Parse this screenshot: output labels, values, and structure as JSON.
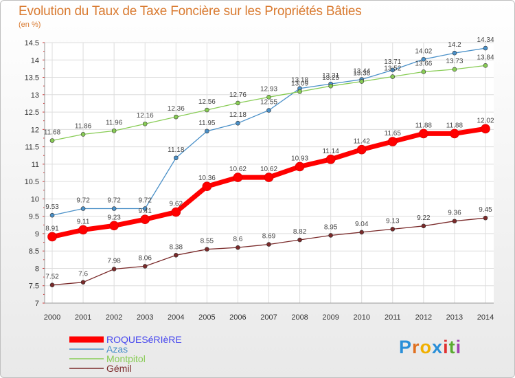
{
  "title": "Evolution du Taux de Taxe Foncière sur les Propriétés Bâties",
  "subtitle": "(en %)",
  "logo": {
    "letters": [
      "P",
      "r",
      "o",
      "x",
      "i",
      "t",
      "i"
    ],
    "colors": [
      "#2a8fd8",
      "#e07020",
      "#f0b000",
      "#2a8fd8",
      "#e03030",
      "#5aaa30",
      "#a040b0"
    ]
  },
  "chart_data": {
    "type": "line",
    "x": [
      2000,
      2001,
      2002,
      2003,
      2004,
      2005,
      2006,
      2007,
      2008,
      2009,
      2010,
      2011,
      2012,
      2013,
      2014
    ],
    "ylim": [
      7,
      14.5
    ],
    "yticks": [
      "7",
      "7.5",
      "8",
      "8.5",
      "9",
      "9.5",
      "10",
      "10.5",
      "11",
      "11.5",
      "12",
      "12.5",
      "13",
      "13.5",
      "14",
      "14.5"
    ],
    "grid": true,
    "legend_position": "bottom-left",
    "series": [
      {
        "name": "ROQUESéRIèRE",
        "color": "#ff0000",
        "legend_color": "#4444ee",
        "width": 7,
        "values": [
          8.91,
          9.11,
          9.23,
          9.41,
          9.62,
          10.36,
          10.62,
          10.62,
          10.93,
          11.14,
          11.42,
          11.65,
          11.88,
          11.88,
          12.02
        ],
        "labels": [
          "8.91",
          "9.11",
          "9.23",
          "9.41",
          "9.62",
          "10.36",
          "10.62",
          "10.62",
          "10.93",
          "11.14",
          "11.42",
          "11.65",
          "11.88",
          "11.88",
          "12.02"
        ]
      },
      {
        "name": "Azas",
        "color": "#4a90c8",
        "legend_color": "#4a90c8",
        "width": 1.3,
        "values": [
          9.53,
          9.72,
          9.72,
          9.72,
          11.18,
          11.95,
          12.18,
          12.55,
          13.18,
          13.31,
          13.44,
          13.71,
          14.02,
          14.2,
          14.34
        ],
        "labels": [
          "9.53",
          "9.72",
          "9.72",
          "9.72",
          "11.18",
          "11.95",
          "12.18",
          "12.55",
          "13.18",
          "13.31",
          "13.44",
          "13.71",
          "14.02",
          "14.2",
          "14.34"
        ]
      },
      {
        "name": "Montpitol",
        "color": "#88cc55",
        "legend_color": "#88cc55",
        "width": 1.3,
        "values": [
          11.68,
          11.86,
          11.96,
          12.16,
          12.36,
          12.56,
          12.76,
          12.93,
          13.09,
          13.25,
          13.38,
          13.52,
          13.66,
          13.73,
          13.84
        ],
        "labels": [
          "11.68",
          "11.86",
          "11.96",
          "12.16",
          "12.36",
          "12.56",
          "12.76",
          "12.93",
          "13.09",
          "13.25",
          "13.38",
          "13.52",
          "13.66",
          "13.73",
          "13.84"
        ]
      },
      {
        "name": "Gémil",
        "color": "#7a2a2a",
        "legend_color": "#7a2a2a",
        "width": 1.3,
        "values": [
          7.52,
          7.6,
          7.98,
          8.06,
          8.38,
          8.55,
          8.6,
          8.69,
          8.82,
          8.95,
          9.04,
          9.13,
          9.22,
          9.36,
          9.45
        ],
        "labels": [
          "7.52",
          "7.6",
          "7.98",
          "8.06",
          "8.38",
          "8.55",
          "8.6",
          "8.69",
          "8.82",
          "8.95",
          "9.04",
          "9.13",
          "9.22",
          "9.36",
          "9.45"
        ]
      }
    ]
  }
}
